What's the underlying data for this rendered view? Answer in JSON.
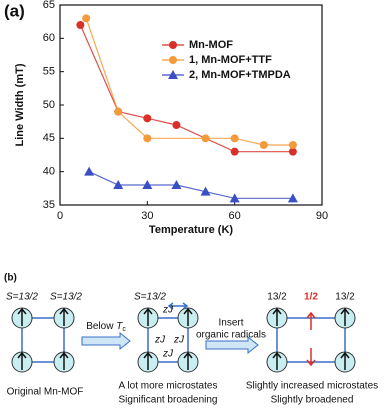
{
  "chart_data": {
    "type": "line",
    "panel_label": "(a)",
    "x_label": "Temperature (K)",
    "y_label": "Line Width (mT)",
    "xlim": [
      0,
      90
    ],
    "xticks": [
      0,
      30,
      60,
      90
    ],
    "ylim": [
      35,
      65
    ],
    "yticks": [
      35,
      40,
      45,
      50,
      55,
      60,
      65
    ],
    "legend": "upper right",
    "series": [
      {
        "name": "Mn-MOF",
        "color": "#d9302a",
        "marker": "circle",
        "x": [
          7,
          20,
          30,
          40,
          60,
          80
        ],
        "values": [
          62,
          49,
          48,
          47,
          43,
          43
        ]
      },
      {
        "name": "1, Mn-MOF+TTF",
        "color": "#f39a3a",
        "marker": "circle",
        "x": [
          9,
          20,
          30,
          50,
          60,
          70,
          80
        ],
        "values": [
          63,
          49,
          45,
          45,
          45,
          44,
          44
        ]
      },
      {
        "name": "2, Mn-MOF+TMPDA",
        "color": "#3b4fc4",
        "marker": "triangle",
        "x": [
          10,
          20,
          30,
          40,
          50,
          60,
          80
        ],
        "values": [
          40,
          38,
          38,
          38,
          37,
          36,
          36
        ]
      }
    ]
  },
  "diagram": {
    "panel_label": "(b)",
    "left": {
      "spin_a": "S=13/2",
      "spin_b": "S=13/2",
      "caption": "Original Mn-MOF"
    },
    "arrow1": {
      "text": "Below ",
      "symbol": "T",
      "subscript": "c"
    },
    "middle": {
      "spin": "S=13/2",
      "couplings": [
        "zJ",
        "zJ",
        "zJ",
        "zJ"
      ],
      "caption": [
        "A lot more microstates",
        "Significant broadening"
      ]
    },
    "arrow2": {
      "lines": [
        "Insert",
        "organic radicals"
      ]
    },
    "right": {
      "spin_a": "13/2",
      "spin_radical": "1/2",
      "spin_b": "13/2",
      "caption": [
        "Slightly increased microstates",
        "Slightly broadened"
      ]
    }
  }
}
